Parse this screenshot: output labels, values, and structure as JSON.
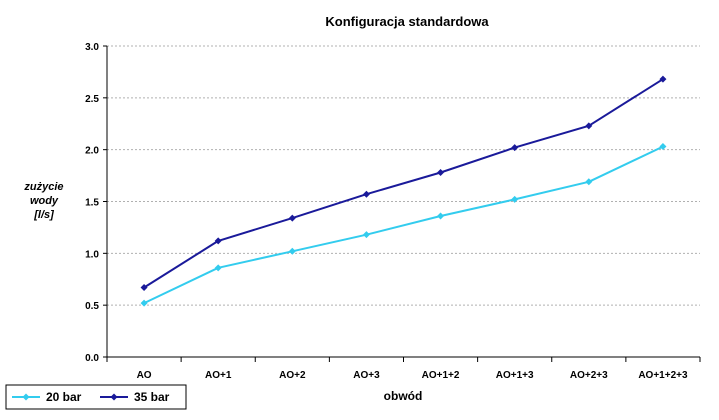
{
  "chart_data": {
    "type": "line",
    "title": "Konfiguracja standardowa",
    "xlabel": "obwód",
    "ylabel_lines": [
      "zużycie",
      "wody",
      "[l/s]"
    ],
    "categories": [
      "AO",
      "AO+1",
      "AO+2",
      "AO+3",
      "AO+1+2",
      "AO+1+3",
      "AO+2+3",
      "AO+1+2+3"
    ],
    "ylim": [
      0,
      3
    ],
    "yticks": [
      "0.0",
      "0.5",
      "1.0",
      "1.5",
      "2.0",
      "2.5",
      "3.0"
    ],
    "grid": true,
    "legend_position": "bottom-left",
    "series": [
      {
        "name": "20 bar",
        "color": "#33ccee",
        "values": [
          0.52,
          0.86,
          1.02,
          1.18,
          1.36,
          1.52,
          1.69,
          2.03
        ]
      },
      {
        "name": "35 bar",
        "color": "#1a1a9a",
        "values": [
          0.67,
          1.12,
          1.34,
          1.57,
          1.78,
          2.02,
          2.23,
          2.68
        ]
      }
    ]
  }
}
